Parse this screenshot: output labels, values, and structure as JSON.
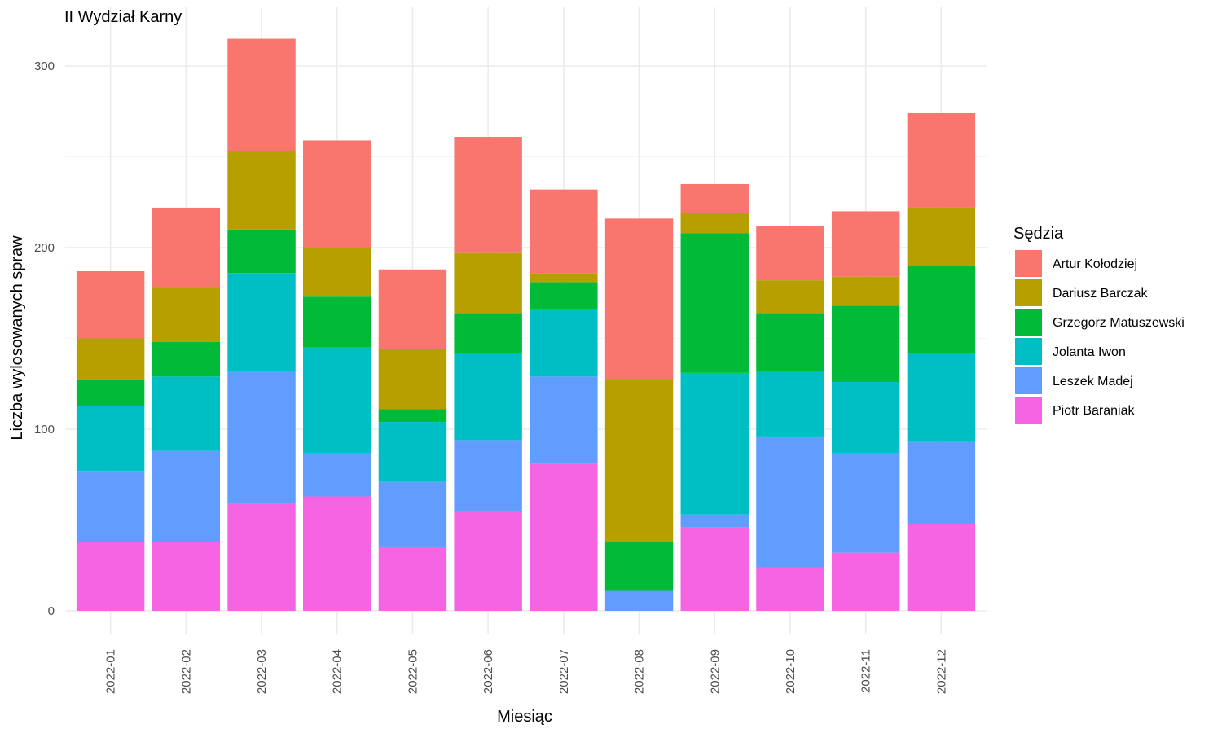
{
  "chart_data": {
    "type": "bar",
    "stacked": true,
    "title": "II Wydział Karny",
    "xlabel": "Miesiąc",
    "ylabel": "Liczba wylosowanych spraw",
    "ylim": [
      0,
      320
    ],
    "yticks": [
      0,
      100,
      200,
      300
    ],
    "grid": true,
    "legend": {
      "title": "Sędzia",
      "position": "right"
    },
    "categories": [
      "2022-01",
      "2022-02",
      "2022-03",
      "2022-04",
      "2022-05",
      "2022-06",
      "2022-07",
      "2022-08",
      "2022-09",
      "2022-10",
      "2022-11",
      "2022-12"
    ],
    "series": [
      {
        "name": "Piotr Baraniak",
        "color": "#F564E3",
        "values": [
          38,
          38,
          59,
          63,
          35,
          55,
          81,
          0,
          46,
          24,
          32,
          48
        ]
      },
      {
        "name": "Leszek Madej",
        "color": "#619CFF",
        "values": [
          39,
          50,
          73,
          24,
          36,
          39,
          48,
          11,
          7,
          72,
          55,
          45
        ]
      },
      {
        "name": "Jolanta Iwon",
        "color": "#00BFC4",
        "values": [
          36,
          41,
          54,
          58,
          33,
          48,
          37,
          0,
          78,
          36,
          39,
          49
        ]
      },
      {
        "name": "Grzegorz Matuszewski",
        "color": "#00BA38",
        "values": [
          14,
          19,
          24,
          28,
          7,
          22,
          15,
          27,
          77,
          32,
          42,
          48
        ]
      },
      {
        "name": "Dariusz Barczak",
        "color": "#B79F00",
        "values": [
          23,
          30,
          43,
          27,
          33,
          33,
          5,
          89,
          11,
          18,
          16,
          32
        ]
      },
      {
        "name": "Artur Kołodziej",
        "color": "#F8766D",
        "values": [
          37,
          44,
          62,
          59,
          44,
          64,
          46,
          89,
          16,
          30,
          36,
          52
        ]
      }
    ]
  }
}
